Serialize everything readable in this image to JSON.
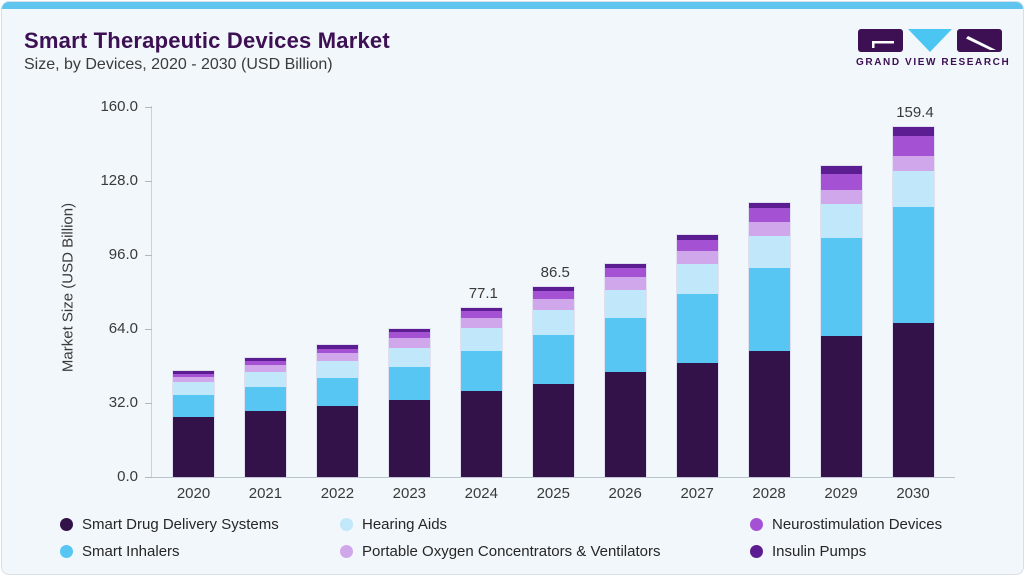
{
  "theme": {
    "top_bar_color": "#5FC5EF",
    "card_background": "#F1F7FB",
    "title_color": "#3C1053",
    "text_color": "#3A3A3A",
    "axis_color": "#C9D2D8"
  },
  "header": {
    "title": "Smart Therapeutic Devices Market",
    "subtitle": "Size, by Devices, 2020 - 2030 (USD Billion)"
  },
  "logo": {
    "text": "GRAND VIEW RESEARCH",
    "block_color": "#3C1053",
    "triangle_color": "#4BC5F1"
  },
  "chart_data": {
    "type": "bar",
    "stacked": true,
    "title": "Smart Therapeutic Devices Market Size, by Devices, 2020 - 2030 (USD Billion)",
    "categories": [
      "2020",
      "2021",
      "2022",
      "2023",
      "2024",
      "2025",
      "2026",
      "2027",
      "2028",
      "2029",
      "2030"
    ],
    "series": [
      {
        "name": "Smart Drug Delivery Systems",
        "color": "#33124A",
        "values": [
          27.5,
          30.0,
          32.5,
          35.2,
          39.0,
          42.3,
          48.0,
          52.1,
          57.5,
          64.3,
          70.1
        ]
      },
      {
        "name": "Smart Inhalers",
        "color": "#58C6F3",
        "values": [
          9.9,
          11.0,
          12.6,
          15.0,
          18.2,
          22.2,
          24.5,
          31.1,
          37.5,
          44.3,
          52.7
        ]
      },
      {
        "name": "Hearing Aids",
        "color": "#C1E8FA",
        "values": [
          5.8,
          6.8,
          7.8,
          8.7,
          10.6,
          11.5,
          12.8,
          13.8,
          14.8,
          15.5,
          16.6
        ]
      },
      {
        "name": "Portable Oxygen Concentrators & Ventilators",
        "color": "#D0A7EB",
        "values": [
          2.4,
          3.0,
          3.4,
          4.2,
          4.6,
          4.9,
          5.6,
          5.9,
          6.5,
          6.8,
          6.9
        ]
      },
      {
        "name": "Neurostimulation Devices",
        "color": "#A551D3",
        "values": [
          1.5,
          1.8,
          2.2,
          2.7,
          3.2,
          3.8,
          4.4,
          5.1,
          6.0,
          7.0,
          9.0
        ]
      },
      {
        "name": "Insulin Pumps",
        "color": "#5C1C92",
        "values": [
          1.3,
          1.4,
          1.5,
          1.5,
          1.5,
          1.8,
          1.8,
          2.3,
          2.7,
          3.5,
          4.1
        ]
      }
    ],
    "total_labels": [
      "",
      "",
      "",
      "",
      "77.1",
      "86.5",
      "",
      "",
      "",
      "",
      "159.4"
    ],
    "ylabel": "Market Size (USD Billion)",
    "yticks": [
      "0.0",
      "32.0",
      "64.0",
      "96.0",
      "128.0",
      "160.0"
    ],
    "ylim": [
      0,
      160
    ],
    "grid": false,
    "legend_position": "bottom",
    "legend_rows": [
      [
        "Smart Drug Delivery Systems",
        "Hearing Aids",
        "Neurostimulation Devices"
      ],
      [
        "Smart Inhalers",
        "Portable Oxygen Concentrators & Ventilators",
        "Insulin Pumps"
      ]
    ]
  }
}
